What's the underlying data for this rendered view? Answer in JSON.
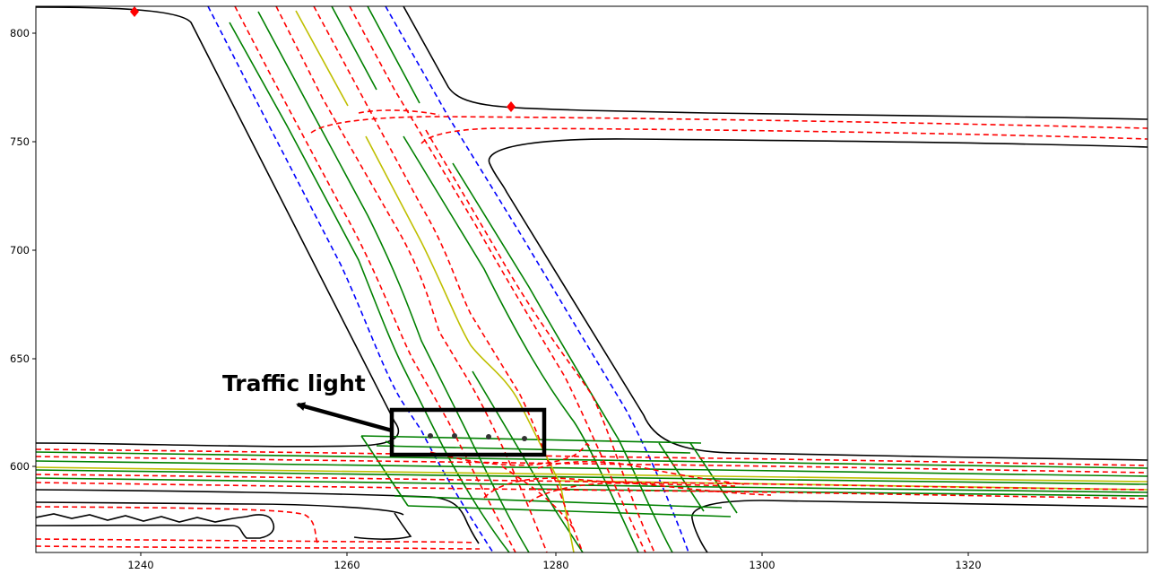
{
  "chart_data": {
    "type": "map",
    "xlim": [
      1229,
      1337
    ],
    "ylim": [
      561,
      812
    ],
    "x_ticks": [
      "1240",
      "1260",
      "1280",
      "1300",
      "1320"
    ],
    "y_ticks": [
      "600",
      "650",
      "700",
      "750",
      "800"
    ],
    "annotation": {
      "text": "Traffic light"
    },
    "colors": {
      "road_boundary": "#000000",
      "lane_divider": "#0000ff",
      "lane_centerline": "#ff0000",
      "lane_boundary": "#008000",
      "center_line": "#bfbf00",
      "stop_marker": "#ff0000"
    },
    "stop_markers": [
      {
        "x": 1239.5,
        "y": 809.5
      },
      {
        "x": 1276,
        "y": 766
      }
    ],
    "traffic_light_points": [
      {
        "x": 1268,
        "y": 614.5
      },
      {
        "x": 1270.5,
        "y": 614.5
      },
      {
        "x": 1274,
        "y": 614
      },
      {
        "x": 1277,
        "y": 613.5
      }
    ]
  }
}
